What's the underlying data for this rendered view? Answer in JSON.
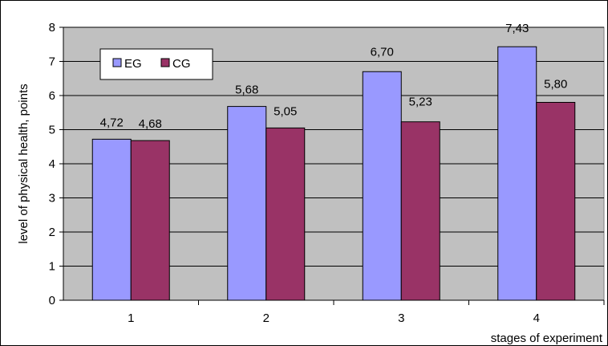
{
  "chart_data": {
    "type": "bar",
    "categories": [
      "1",
      "2",
      "3",
      "4"
    ],
    "series": [
      {
        "name": "EG",
        "values": [
          4.72,
          5.68,
          6.7,
          7.43
        ],
        "labels": [
          "4,72",
          "5,68",
          "6,70",
          "7,43"
        ],
        "color": "#9999ff"
      },
      {
        "name": "CG",
        "values": [
          4.68,
          5.05,
          5.23,
          5.8
        ],
        "labels": [
          "4,68",
          "5,05",
          "5,23",
          "5,80"
        ],
        "color": "#993366"
      }
    ],
    "xlabel": "stages of experiment",
    "ylabel": "level of physical health, points",
    "ylim": [
      0,
      8
    ],
    "yticks": [
      "0",
      "1",
      "2",
      "3",
      "4",
      "5",
      "6",
      "7",
      "8"
    ],
    "plot_background": "#c0c0c0",
    "grid": true,
    "legend_position": "top-left"
  }
}
